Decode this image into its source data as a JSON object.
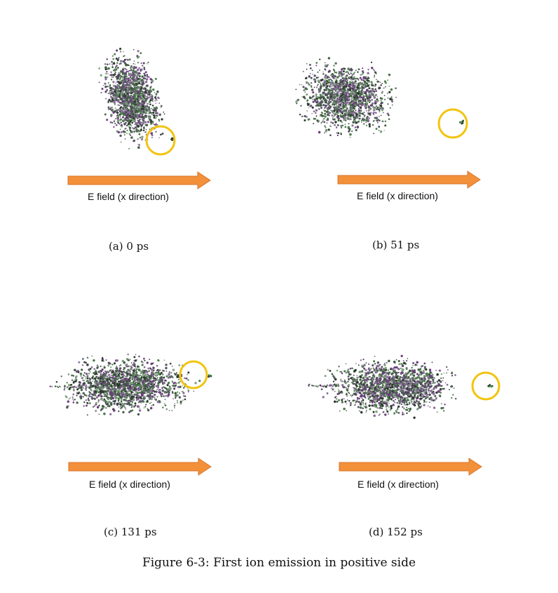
{
  "figure": {
    "caption": "Figure 6-3: First ion emission in positive side",
    "colors": {
      "arrow_fill": "#f3903a",
      "arrow_stroke": "#d8742a",
      "highlight_circle": "#f2c40f",
      "emitted_ion_label": "#4caf50",
      "molecule_colors": [
        "#2b3a2b",
        "#3f5c3f",
        "#4d7a4d",
        "#6a3f7a",
        "#8a6a9a",
        "#555566",
        "#7fa07f"
      ]
    },
    "icons": [
      "molecular-cluster-icon",
      "highlight-circle-icon",
      "e-field-arrow-icon"
    ],
    "panels": [
      {
        "id": "a",
        "subcaption": "(a) 0 ps",
        "arrow_label": "E field (x direction)"
      },
      {
        "id": "b",
        "subcaption": "(b) 51 ps",
        "arrow_label": "E field (x direction)"
      },
      {
        "id": "c",
        "subcaption": "(c) 131 ps",
        "arrow_label": "E field (x direction)"
      },
      {
        "id": "d",
        "subcaption": "(d) 152 ps",
        "arrow_label": "E field (x direction)"
      }
    ]
  }
}
